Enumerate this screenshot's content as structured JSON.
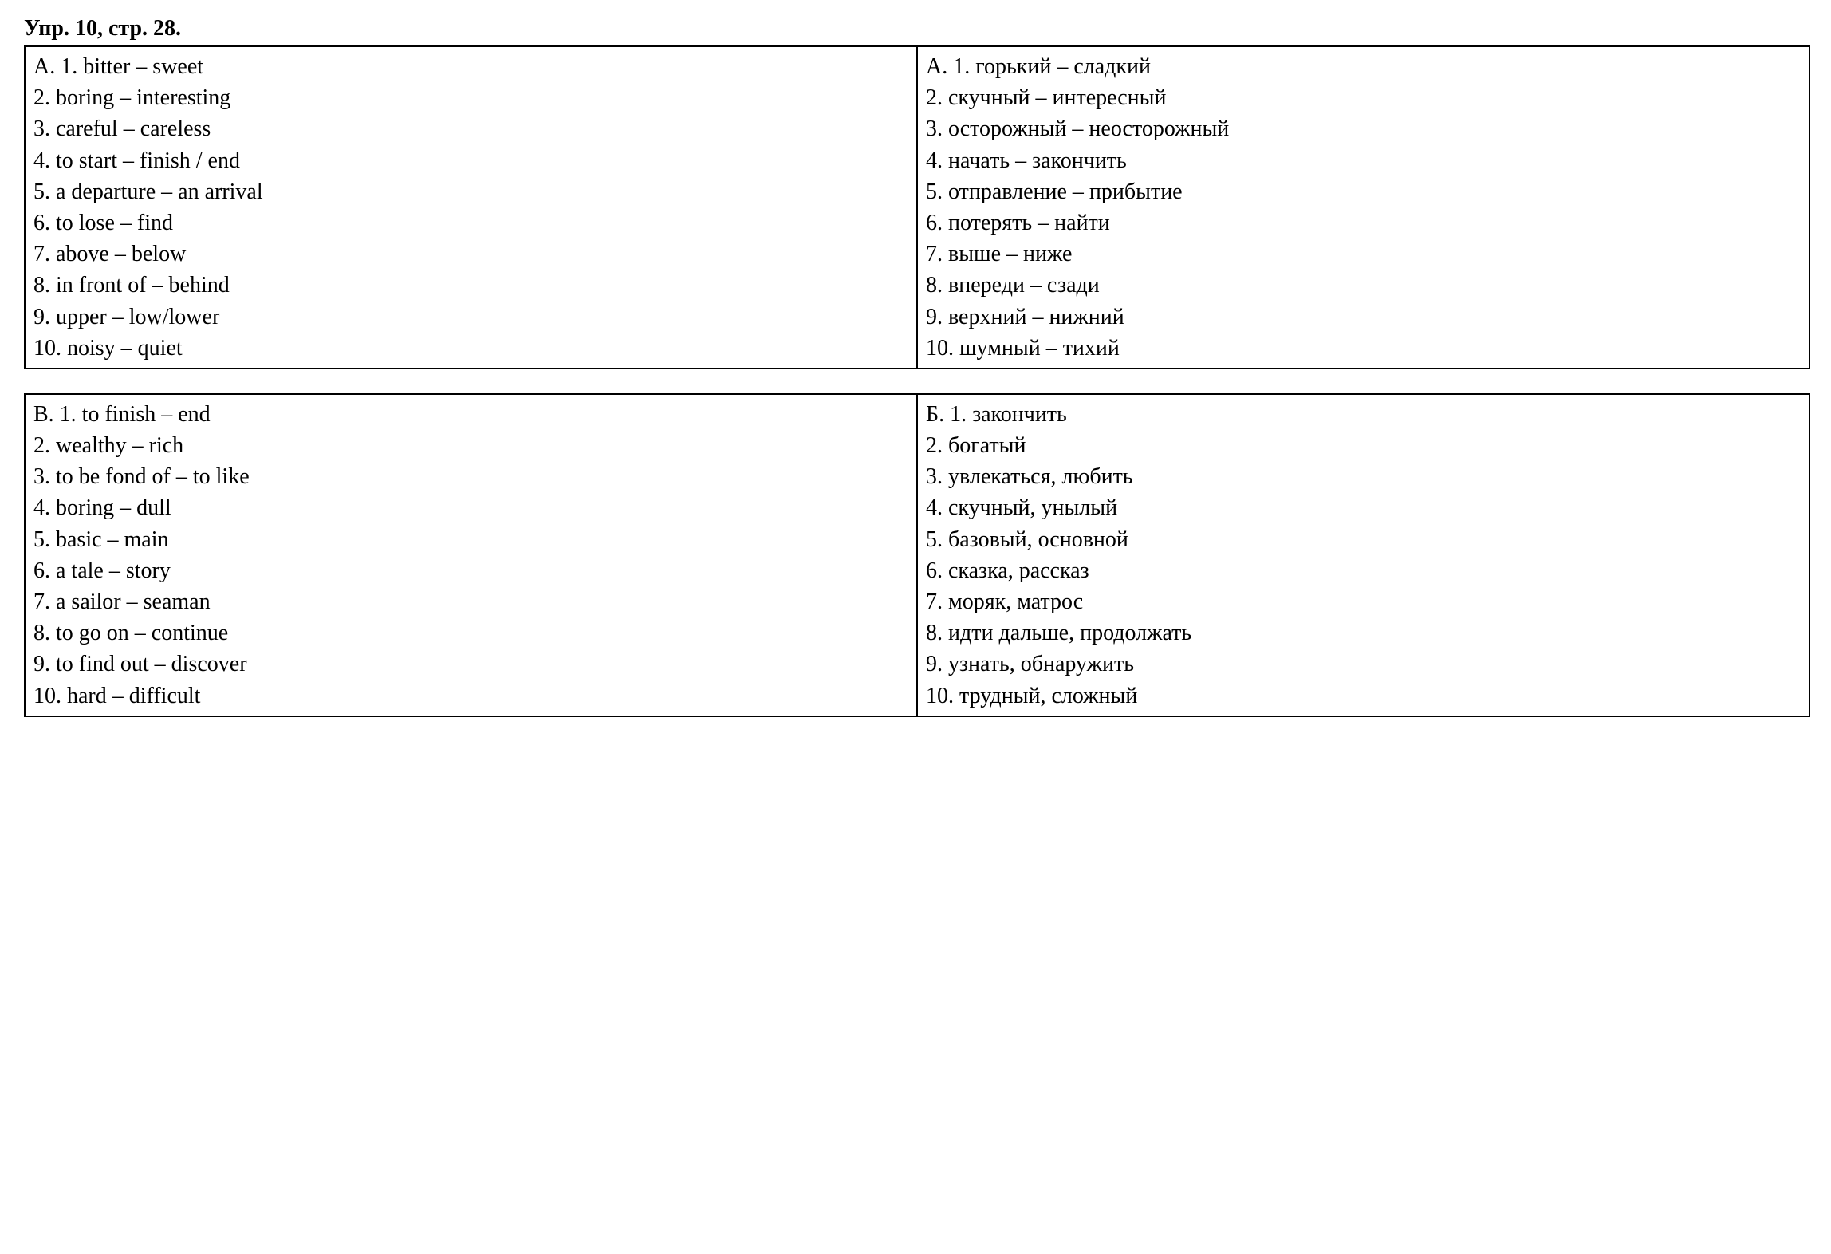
{
  "header": "Упр. 10, стр. 28.",
  "tableA": {
    "left": [
      "A. 1. bitter – sweet",
      "2. boring – interesting",
      "3. careful – careless",
      "4. to start – finish / end",
      "5. a departure – an arrival",
      "6. to lose – find",
      "7. above – below",
      "8. in front of – behind",
      "9. upper – low/lower",
      "10. noisy – quiet"
    ],
    "right": [
      "А. 1. горький – сладкий",
      "2. скучный – интересный",
      "3. осторожный – неосторожный",
      "4. начать – закончить",
      "5. отправление – прибытие",
      "6. потерять – найти",
      "7. выше – ниже",
      "8. впереди – сзади",
      "9. верхний – нижний",
      "10. шумный – тихий"
    ]
  },
  "tableB": {
    "left": [
      "B. 1. to finish – end",
      "2. wealthy – rich",
      "3. to be fond of – to like",
      "4. boring – dull",
      "5. basic – main",
      "6. a tale – story",
      "7. a sailor – seaman",
      "8. to go on – continue",
      "9. to find out – discover",
      "10. hard – difficult"
    ],
    "right": [
      "Б. 1. закончить",
      "2. богатый",
      "3. увлекаться, любить",
      "4. скучный, унылый",
      "5. базовый, основной",
      "6. сказка, рассказ",
      "7. моряк, матрос",
      "8. идти дальше, продолжать",
      "9. узнать, обнаружить",
      "10. трудный, сложный"
    ]
  }
}
